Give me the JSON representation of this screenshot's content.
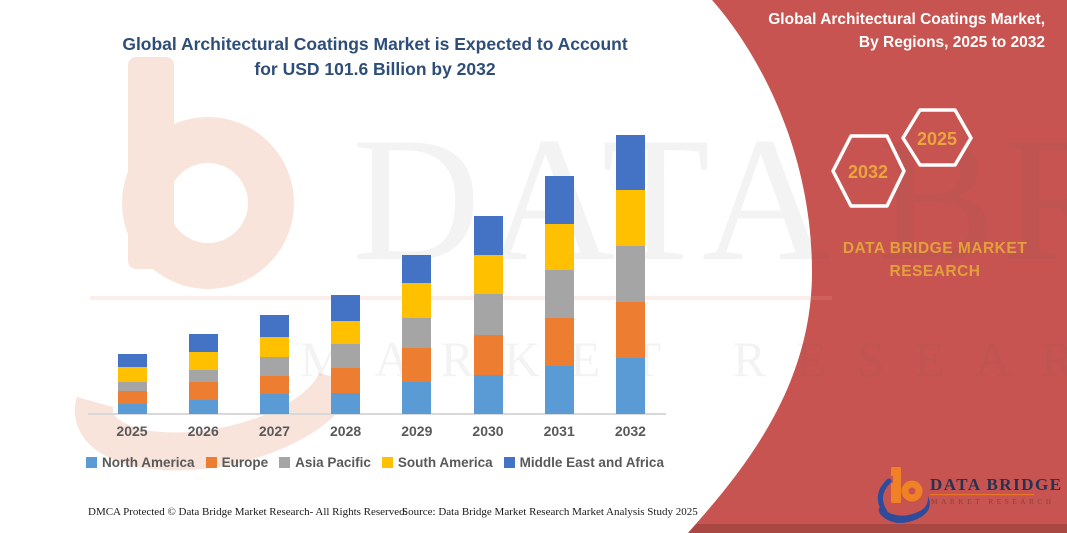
{
  "main_title": {
    "line1": "Global Architectural Coatings Market is Expected to Account",
    "line2": "for USD 101.6 Billion by 2032"
  },
  "panel": {
    "color": "#C75450",
    "bottom_edge_color": "#A94843",
    "title_line1": "Global Architectural Coatings Market,",
    "title_line2": "By Regions, 2025 to 2032",
    "hexagon_back_label": "2032",
    "hexagon_front_label": "2025",
    "hexagon_label_color": "#E9A63F",
    "brand_line1": "DATA BRIDGE MARKET",
    "brand_line2": "RESEARCH"
  },
  "logo": {
    "name": "DATA BRIDGE",
    "subtext": "MARKET RESEARCH",
    "mark_orange": "#F08124",
    "mark_blue": "#2E4C9B",
    "text_color": "#253250"
  },
  "watermark": {
    "line1": "DATA BRIDGE",
    "line2": "MARKET RESEARCH"
  },
  "footer": {
    "dmca": "DMCA Protected © Data Bridge Market Research-  All Rights Reserved.",
    "source": "Source: Data Bridge Market Research  Market Analysis Study 2025"
  },
  "chart_data": {
    "type": "bar",
    "stacked": true,
    "title": "Global Architectural Coatings Market is Expected to Account for USD 101.6 Billion by 2032",
    "unit": "USD Billion (estimated from bar heights; 2032 total = 101.6)",
    "categories": [
      "2025",
      "2026",
      "2027",
      "2028",
      "2029",
      "2030",
      "2031",
      "2032"
    ],
    "series": [
      {
        "name": "North America",
        "color": "#5B9BD5",
        "values": [
          3.6,
          5.1,
          7.3,
          7.7,
          11.8,
          14.2,
          17.5,
          20.6
        ]
      },
      {
        "name": "Europe",
        "color": "#ED7D31",
        "values": [
          4.8,
          6.7,
          6.6,
          9.1,
          12.4,
          14.8,
          17.6,
          20.4
        ]
      },
      {
        "name": "Asia Pacific",
        "color": "#A5A5A5",
        "values": [
          3.3,
          4.3,
          7.0,
          8.8,
          10.7,
          14.9,
          17.6,
          20.3
        ]
      },
      {
        "name": "South America",
        "color": "#FFC000",
        "values": [
          5.5,
          6.5,
          7.3,
          8.5,
          13.0,
          14.2,
          16.8,
          20.3
        ]
      },
      {
        "name": "Middle East and Africa",
        "color": "#4472C4",
        "values": [
          4.6,
          6.6,
          7.9,
          9.4,
          10.1,
          14.2,
          17.5,
          20.1
        ]
      }
    ],
    "totals": [
      21.8,
      29.2,
      36.1,
      43.5,
      58.0,
      72.3,
      87.0,
      101.7
    ],
    "xlabel": "",
    "ylabel": "",
    "ylim": [
      0,
      105
    ],
    "grid": false,
    "y_axis_shown": false,
    "legend_position": "bottom",
    "axis_line_color": "#D9D9D9"
  }
}
